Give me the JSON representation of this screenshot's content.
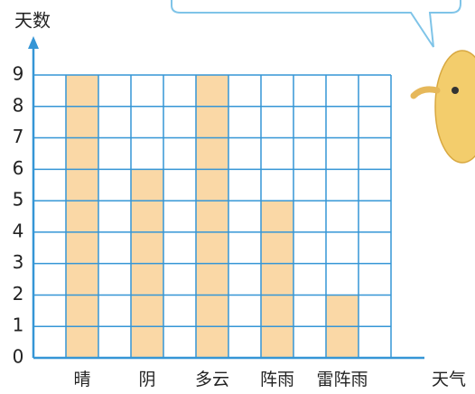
{
  "chart_data": {
    "type": "bar",
    "y_label": "天数",
    "x_label": "天气",
    "categories": [
      "晴",
      "阴",
      "多云",
      "阵雨",
      "雷阵雨"
    ],
    "values": [
      9,
      6,
      9,
      5,
      2
    ],
    "color": "#f9d49c",
    "ylim": [
      0,
      9
    ],
    "yticks": [
      0,
      1,
      2,
      3,
      4,
      5,
      6,
      7,
      8,
      9
    ],
    "grid": true
  }
}
